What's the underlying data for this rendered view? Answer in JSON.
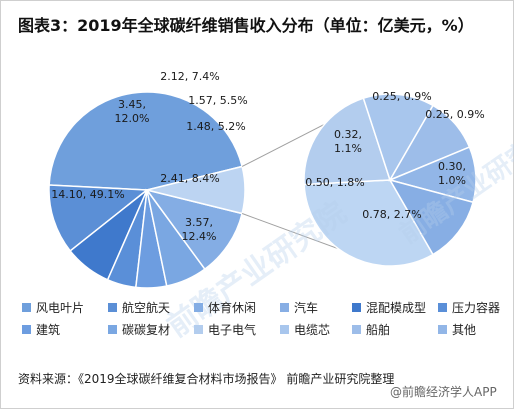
{
  "chart_data": {
    "type": "pie",
    "title": "图表3：2019年全球碳纤维销售收入分布（单位：亿美元，%）",
    "main_slices": [
      {
        "name": "风电叶片",
        "value": 14.1,
        "percent": 49.1,
        "label": "14.10, 49.1%",
        "color": "#6f9fdc"
      },
      {
        "name": "航空航天",
        "value": 3.57,
        "percent": 12.4,
        "label": "3.57,\n12.4%",
        "color": "#5b8fd6"
      },
      {
        "name": "混配模成型",
        "value": 2.41,
        "percent": 8.4,
        "label": "2.41, 8.4%",
        "color": "#3f79cc"
      },
      {
        "name": "压力容器",
        "value": 1.48,
        "percent": 5.2,
        "label": "1.48, 5.2%",
        "color": "#5a8fd8"
      },
      {
        "name": "建筑",
        "value": 1.57,
        "percent": 5.5,
        "label": "1.57, 5.5%",
        "color": "#6d9de0"
      },
      {
        "name": "碳碳复材",
        "value": 2.12,
        "percent": 7.4,
        "label": "2.12, 7.4%",
        "color": "#7aa7e2"
      },
      {
        "name": "体育休闲",
        "value": 3.45,
        "percent": 12.0,
        "label": "3.45,\n12.0%",
        "color": "#84ade4"
      }
    ],
    "detail_slices": [
      {
        "name": "汽车",
        "value": 0.78,
        "percent": 2.7,
        "label": "0.78, 2.7%",
        "color": "#bdd6f3"
      },
      {
        "name": "电子电气",
        "value": 0.5,
        "percent": 1.8,
        "label": "0.50, 1.8%",
        "color": "#b3cdee"
      },
      {
        "name": "电缆芯",
        "value": 0.32,
        "percent": 1.1,
        "label": "0.32,\n1.1%",
        "color": "#a8c6ed"
      },
      {
        "name": "船舶",
        "value": 0.25,
        "percent": 0.9,
        "label": "0.25, 0.9%",
        "color": "#9dbde9"
      },
      {
        "name": "其他",
        "value": 0.25,
        "percent": 0.9,
        "label": "0.25, 0.9%",
        "color": "#92b6e7"
      },
      {
        "name": "汽车",
        "value": 0.3,
        "percent": 1.0,
        "label": "0.30,\n1.0%",
        "color": "#87aee4"
      }
    ],
    "legend": [
      {
        "label": "风电叶片",
        "color": "#6f9fdc"
      },
      {
        "label": "航空航天",
        "color": "#5b8fd6"
      },
      {
        "label": "体育休闲",
        "color": "#84ade4"
      },
      {
        "label": "汽车",
        "color": "#87aee4"
      },
      {
        "label": "混配模成型",
        "color": "#3f79cc"
      },
      {
        "label": "压力容器",
        "color": "#5a8fd8"
      },
      {
        "label": "建筑",
        "color": "#6d9de0"
      },
      {
        "label": "碳碳复材",
        "color": "#7aa7e2"
      },
      {
        "label": "电子电气",
        "color": "#b3cdee"
      },
      {
        "label": "电缆芯",
        "color": "#a8c6ed"
      },
      {
        "label": "船舶",
        "color": "#9dbde9"
      },
      {
        "label": "其他",
        "color": "#92b6e7"
      }
    ],
    "legend_position": "bottom"
  },
  "source": "资料来源：《2019全球碳纤维复合材料市场报告》 前瞻产业研究院整理",
  "watermarks": {
    "center": "前瞻产业研究院",
    "right": "前瞻产业研究院",
    "bottom": "@前瞻经济学人APP"
  }
}
